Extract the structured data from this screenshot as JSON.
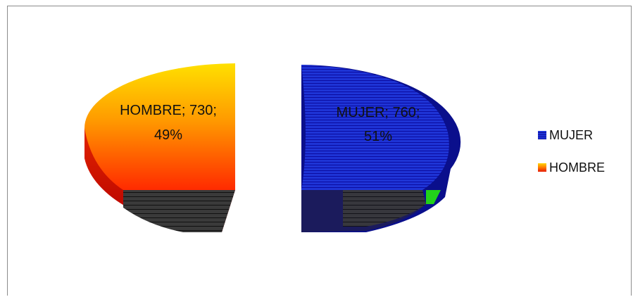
{
  "chart_data": {
    "type": "pie",
    "style": "3d-exploded",
    "slices": [
      {
        "name": "MUJER",
        "value": 760,
        "percent": 51,
        "label_line1": "MUJER; 760;",
        "label_line2": "51%",
        "color": "#1f35d8"
      },
      {
        "name": "HOMBRE",
        "value": 730,
        "percent": 49,
        "label_line1": "HOMBRE; 730;",
        "label_line2": "49%",
        "color": "#ff6a00"
      }
    ],
    "legend": {
      "position": "right",
      "items": [
        {
          "label": "MUJER",
          "color": "#1f35d8"
        },
        {
          "label": "HOMBRE",
          "color": "#ff6a00"
        }
      ]
    }
  }
}
